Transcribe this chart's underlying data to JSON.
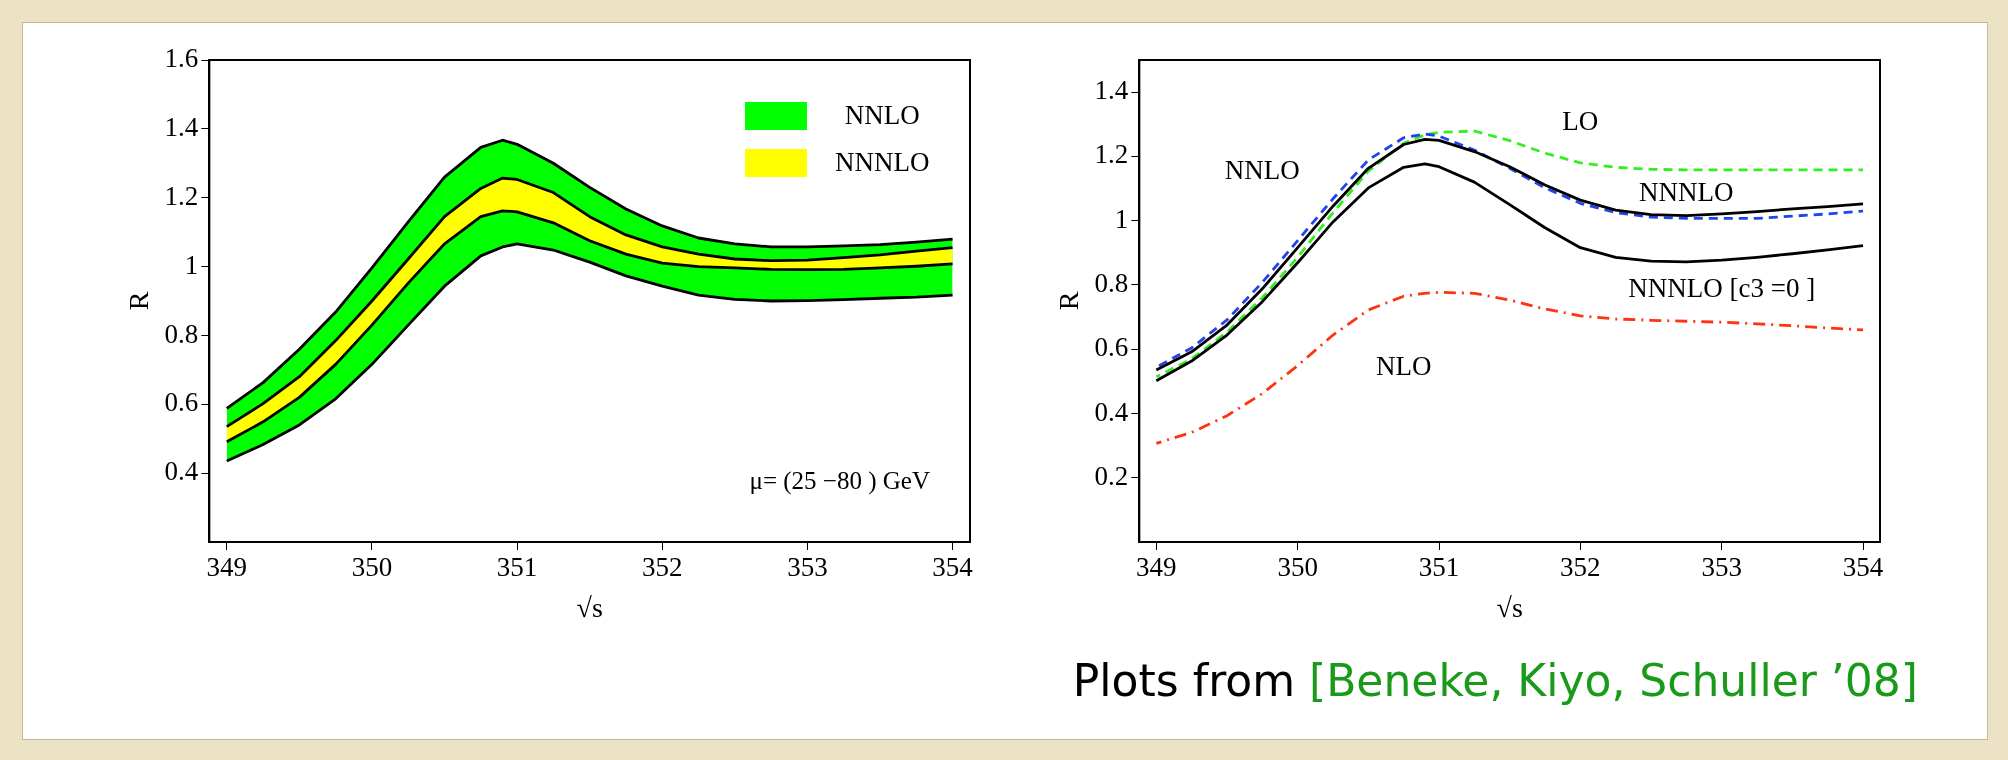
{
  "chart_data": [
    {
      "type": "line",
      "xlabel": "√s",
      "ylabel": "R",
      "xlim": [
        348.88,
        354.12
      ],
      "ylim": [
        0.2,
        1.6
      ],
      "xticks": [
        349,
        350,
        351,
        352,
        353,
        354
      ],
      "yticks": [
        0.4,
        0.6,
        0.8,
        1,
        1.2,
        1.4,
        1.6
      ],
      "legend": "top right",
      "annotations": [
        "μ= (25 −80 ) GeV"
      ],
      "x": [
        349,
        349.25,
        349.5,
        349.75,
        350,
        350.25,
        350.5,
        350.75,
        350.9,
        351,
        351.25,
        351.5,
        351.75,
        352,
        352.25,
        352.5,
        352.75,
        353,
        353.25,
        353.5,
        353.75,
        354
      ],
      "series": [
        {
          "type": "line",
          "color": "#000000",
          "values": [
            0.588,
            0.663,
            0.76,
            0.868,
            0.996,
            1.13,
            1.26,
            1.346,
            1.367,
            1.355,
            1.3,
            1.23,
            1.167,
            1.118,
            1.083,
            1.066,
            1.057,
            1.057,
            1.06,
            1.064,
            1.071,
            1.08
          ]
        },
        {
          "type": "line",
          "color": "#000000",
          "values": [
            0.535,
            0.602,
            0.68,
            0.785,
            0.9,
            1.022,
            1.145,
            1.227,
            1.257,
            1.253,
            1.215,
            1.145,
            1.092,
            1.057,
            1.036,
            1.022,
            1.017,
            1.019,
            1.026,
            1.034,
            1.045,
            1.055
          ]
        },
        {
          "type": "line",
          "color": "#000000",
          "values": [
            0.491,
            0.549,
            0.62,
            0.716,
            0.83,
            0.952,
            1.066,
            1.145,
            1.162,
            1.159,
            1.127,
            1.075,
            1.036,
            1.01,
            1.0,
            0.996,
            0.992,
            0.991,
            0.992,
            0.996,
            1.001,
            1.008
          ]
        },
        {
          "type": "line",
          "color": "#000000",
          "values": [
            0.435,
            0.483,
            0.54,
            0.616,
            0.716,
            0.83,
            0.943,
            1.031,
            1.057,
            1.066,
            1.048,
            1.013,
            0.973,
            0.943,
            0.917,
            0.905,
            0.9,
            0.901,
            0.904,
            0.908,
            0.911,
            0.917
          ]
        },
        {
          "name": "NNLO",
          "type": "area",
          "color": "#00ff00",
          "values": [
            null,
            null,
            null,
            null,
            null,
            null,
            null,
            null,
            null,
            null,
            null,
            null,
            null,
            null,
            null,
            null,
            null,
            null,
            null,
            null,
            null,
            null
          ],
          "upper": [
            0.588,
            0.663,
            0.76,
            0.868,
            0.996,
            1.13,
            1.26,
            1.346,
            1.367,
            1.355,
            1.3,
            1.23,
            1.167,
            1.118,
            1.083,
            1.066,
            1.057,
            1.057,
            1.06,
            1.064,
            1.071,
            1.08
          ],
          "lower": [
            0.435,
            0.483,
            0.54,
            0.616,
            0.716,
            0.83,
            0.943,
            1.031,
            1.057,
            1.066,
            1.048,
            1.013,
            0.973,
            0.943,
            0.917,
            0.905,
            0.9,
            0.901,
            0.904,
            0.908,
            0.911,
            0.917
          ]
        },
        {
          "name": "NNNLO",
          "type": "area",
          "color": "#ffff00",
          "values": [
            null,
            null,
            null,
            null,
            null,
            null,
            null,
            null,
            null,
            null,
            null,
            null,
            null,
            null,
            null,
            null,
            null,
            null,
            null,
            null,
            null,
            null
          ],
          "upper": [
            0.535,
            0.602,
            0.68,
            0.785,
            0.9,
            1.022,
            1.145,
            1.227,
            1.257,
            1.253,
            1.215,
            1.145,
            1.092,
            1.057,
            1.036,
            1.022,
            1.017,
            1.019,
            1.026,
            1.034,
            1.045,
            1.055
          ],
          "lower": [
            0.491,
            0.549,
            0.62,
            0.716,
            0.83,
            0.952,
            1.066,
            1.145,
            1.162,
            1.159,
            1.127,
            1.075,
            1.036,
            1.01,
            1.0,
            0.996,
            0.992,
            0.991,
            0.992,
            0.996,
            1.001,
            1.008
          ]
        }
      ]
    },
    {
      "type": "line",
      "xlabel": "√s",
      "ylabel": "R",
      "xlim": [
        348.88,
        354.12
      ],
      "ylim": [
        0,
        1.5
      ],
      "xticks": [
        349,
        350,
        351,
        352,
        353,
        354
      ],
      "yticks": [
        0.2,
        0.4,
        0.6,
        0.8,
        1,
        1.2,
        1.4
      ],
      "annotations": [
        "Plots from",
        "[Beneke, Kiyo, Schuller ’08]"
      ],
      "x": [
        349,
        349.25,
        349.5,
        349.75,
        350,
        350.25,
        350.5,
        350.75,
        350.9,
        351,
        351.25,
        351.5,
        351.75,
        352,
        352.25,
        352.5,
        352.75,
        353,
        353.25,
        353.5,
        353.75,
        354
      ],
      "series": [
        {
          "name": "LO",
          "color": "#33ee22",
          "line_style": "dashed",
          "values": [
            0.514,
            0.57,
            0.653,
            0.76,
            0.886,
            1.025,
            1.154,
            1.241,
            1.267,
            1.275,
            1.279,
            1.249,
            1.21,
            1.18,
            1.166,
            1.16,
            1.158,
            1.158,
            1.158,
            1.158,
            1.158,
            1.158
          ]
        },
        {
          "name": "NNLO",
          "color": "#2244ee",
          "line_style": "dashed",
          "values": [
            0.544,
            0.604,
            0.691,
            0.808,
            0.938,
            1.068,
            1.189,
            1.258,
            1.27,
            1.263,
            1.22,
            1.163,
            1.102,
            1.054,
            1.025,
            1.011,
            1.007,
            1.007,
            1.007,
            1.014,
            1.021,
            1.03
          ]
        },
        {
          "name": "NNNLO",
          "color": "#000000",
          "line_style": "solid",
          "values": [
            0.535,
            0.592,
            0.675,
            0.788,
            0.916,
            1.045,
            1.163,
            1.237,
            1.253,
            1.25,
            1.215,
            1.168,
            1.111,
            1.064,
            1.033,
            1.019,
            1.016,
            1.021,
            1.028,
            1.037,
            1.044,
            1.052
          ]
        },
        {
          "name": "NNNLO [c3 =0 ]",
          "color": "#000000",
          "line_style": "solid",
          "values": [
            0.502,
            0.563,
            0.644,
            0.748,
            0.869,
            0.996,
            1.102,
            1.166,
            1.177,
            1.168,
            1.12,
            1.05,
            0.978,
            0.916,
            0.886,
            0.874,
            0.872,
            0.877,
            0.886,
            0.897,
            0.909,
            0.922
          ]
        },
        {
          "name": "NLO",
          "color": "#ff3311",
          "line_style": "dashdot",
          "values": [
            0.307,
            0.341,
            0.393,
            0.462,
            0.549,
            0.644,
            0.722,
            0.765,
            0.774,
            0.777,
            0.774,
            0.753,
            0.725,
            0.704,
            0.694,
            0.69,
            0.687,
            0.684,
            0.679,
            0.673,
            0.666,
            0.66
          ]
        }
      ]
    }
  ]
}
